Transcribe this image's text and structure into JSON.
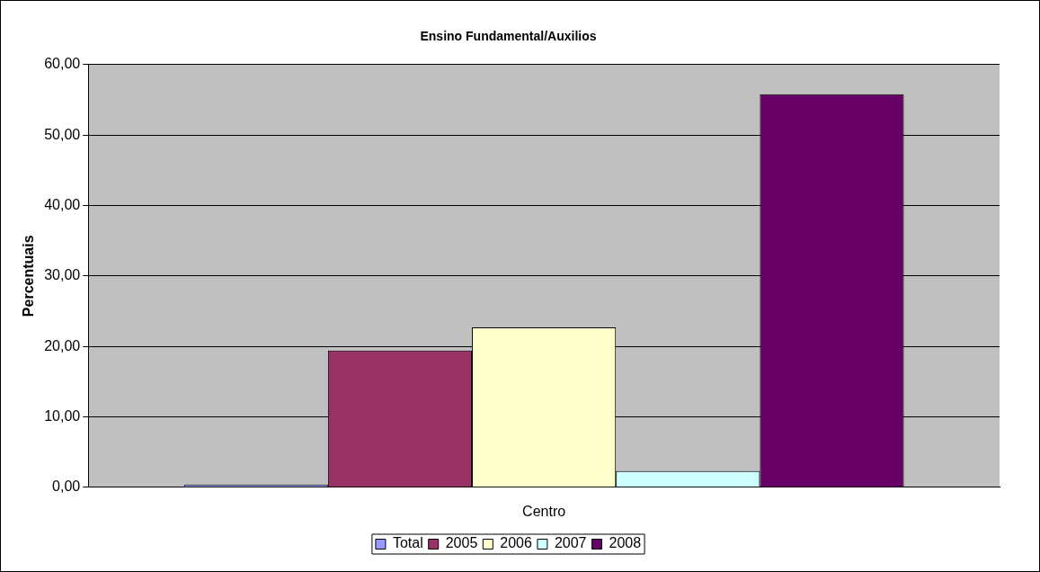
{
  "chart_data": {
    "type": "bar",
    "title": "Ensino Fundamental/Auxilios",
    "ylabel": "Percentuais",
    "categories": [
      "Centro"
    ],
    "series": [
      {
        "name": "Total",
        "color": "#9999ff",
        "values": [
          0.4
        ]
      },
      {
        "name": "2005",
        "color": "#993366",
        "values": [
          19.4
        ]
      },
      {
        "name": "2006",
        "color": "#ffffcc",
        "values": [
          22.7
        ]
      },
      {
        "name": "2007",
        "color": "#ccffff",
        "values": [
          2.3
        ]
      },
      {
        "name": "2008",
        "color": "#660066",
        "values": [
          55.8
        ]
      }
    ],
    "ylim": [
      0,
      60
    ],
    "yticks": [
      {
        "value": 0,
        "label": "0,00"
      },
      {
        "value": 10,
        "label": "10,00"
      },
      {
        "value": 20,
        "label": "20,00"
      },
      {
        "value": 30,
        "label": "30,00"
      },
      {
        "value": 40,
        "label": "40,00"
      },
      {
        "value": 50,
        "label": "50,00"
      },
      {
        "value": 60,
        "label": "60,00"
      }
    ],
    "grid": "y",
    "legend": "bottom"
  }
}
